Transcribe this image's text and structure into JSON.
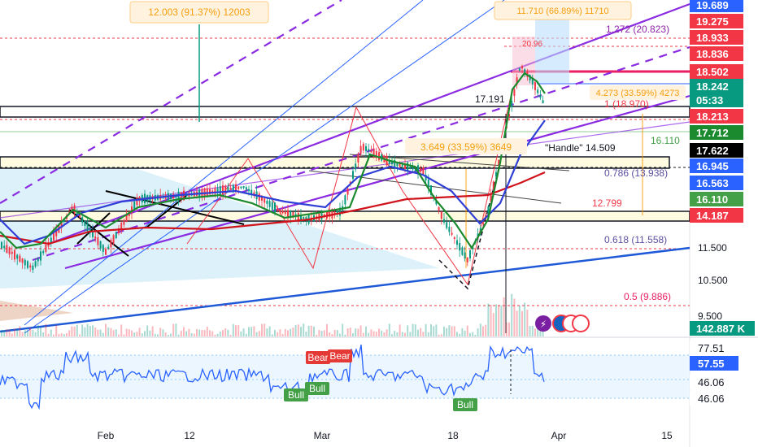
{
  "chart_data": [
    {
      "type": "line",
      "panel": "price",
      "x_tick_labels": [
        "Feb",
        "12",
        "Mar",
        "18",
        "Apr",
        "15"
      ],
      "price_axis_badges": [
        {
          "label": "19.689",
          "color": "#2962ff"
        },
        {
          "label": "19.275",
          "color": "#f23645"
        },
        {
          "label": "18.933",
          "color": "#f23645"
        },
        {
          "label": "18.836",
          "color": "#f23645"
        },
        {
          "label": "18.502",
          "color": "#f23645"
        },
        {
          "label": "18.242",
          "color": "#089981"
        },
        {
          "label": "05:33",
          "color": "#089981"
        },
        {
          "label": "18.213",
          "color": "#f23645"
        },
        {
          "label": "17.712",
          "color": "#1b8a2e"
        },
        {
          "label": "17.622",
          "color": "#000000"
        },
        {
          "label": "16.945",
          "color": "#2962ff"
        },
        {
          "label": "16.563",
          "color": "#2962ff"
        },
        {
          "label": "16.110",
          "color": "#43a047"
        },
        {
          "label": "14.187",
          "color": "#f23645"
        },
        {
          "label": "142.887 K",
          "color": "#089981"
        }
      ],
      "price_axis_plain": [
        "11.500",
        "10.500",
        "9.500"
      ],
      "annotations": {
        "measure_top_left": "12.003 (91.37%) 12003",
        "measure_top_right": "11.710 (66.89%) 11710",
        "measure_mid": "3.649 (33.59%) 3649",
        "measure_right": "4.273 (33.59%) 4273",
        "handle": "\"Handle\" 14.509",
        "value_17191": "17.191",
        "value_16110": "16.110",
        "value_12799": "12.799",
        "value_2096": "20.96",
        "fib_1272": "1.272 (20.823)",
        "fib_1": "1 (18.970)",
        "fib_0786": "0.786 (13.938)",
        "fib_0618": "0.618 (11.558)",
        "fib_05": "0.5 (9.886)"
      },
      "colors": {
        "up": "#089981",
        "down": "#f23645",
        "ma_blue": "#2f3fd6",
        "ma_red": "#d0121b",
        "ma_green": "#1b8a2e",
        "channel": "#8a2be2",
        "trend_blue": "#1e5ad8",
        "zone_fill": "#fffbe0",
        "cloud_fill": "#d6eef8"
      }
    },
    {
      "type": "line",
      "panel": "rsi",
      "axis_badges": [
        {
          "label": "77.51",
          "color": "#ffffff"
        },
        {
          "label": "57.55",
          "color": "#2962ff"
        },
        {
          "label": "46.06",
          "color": "#ffffff"
        },
        {
          "label": "46.06",
          "color": "#ffffff"
        }
      ],
      "signals": [
        {
          "label": "Bear",
          "kind": "bear"
        },
        {
          "label": "Bear",
          "kind": "bear"
        },
        {
          "label": "Bull",
          "kind": "bull"
        },
        {
          "label": "Bull",
          "kind": "bull"
        },
        {
          "label": "Bull",
          "kind": "bull"
        }
      ]
    }
  ]
}
